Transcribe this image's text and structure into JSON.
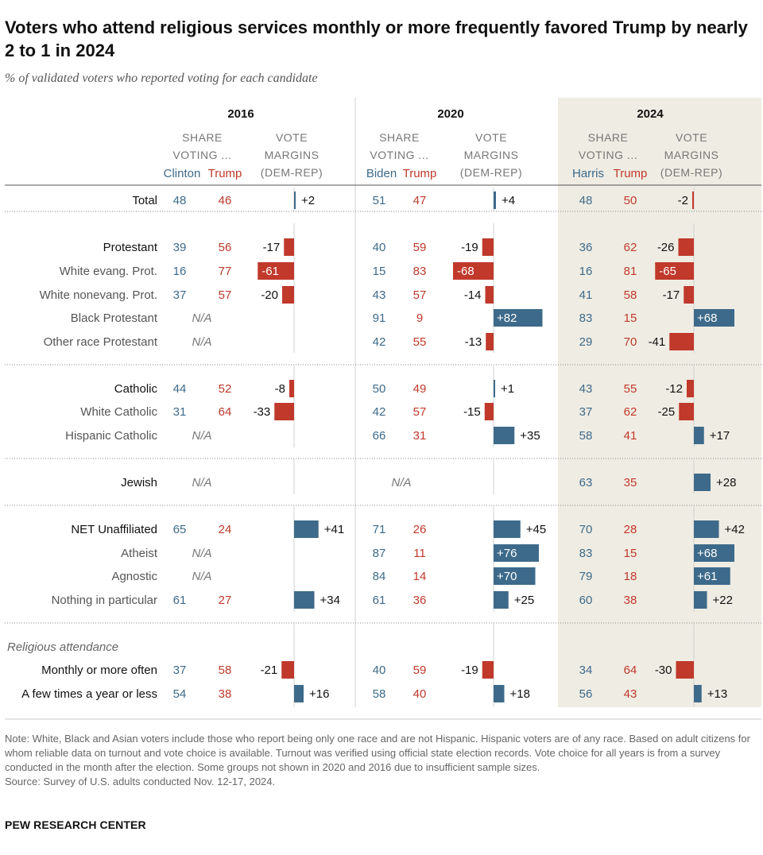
{
  "title": "Voters who attend religious services monthly or more frequently favored Trump by nearly 2 to 1 in 2024",
  "subtitle": "% of validated voters who reported voting for each candidate",
  "colors": {
    "dem": "#3d6a8a",
    "rep": "#c0392b",
    "shade": "#efece3",
    "grid": "#d0d0d0",
    "header": "#777777"
  },
  "headers": {
    "share": [
      "SHARE",
      "VOTING ..."
    ],
    "margin": [
      "VOTE",
      "MARGINS",
      "(DEM-REP)"
    ]
  },
  "chart_data": {
    "type": "table",
    "years": [
      {
        "year": "2016",
        "dem": "Clinton",
        "rep": "Trump"
      },
      {
        "year": "2020",
        "dem": "Biden",
        "rep": "Trump"
      },
      {
        "year": "2024",
        "dem": "Harris",
        "rep": "Trump"
      }
    ],
    "na_label": "N/A",
    "groups": [
      {
        "label": "",
        "rows": [
          {
            "label": "Total",
            "values": [
              [
                48,
                46,
                2
              ],
              [
                51,
                47,
                4
              ],
              [
                48,
                50,
                -2
              ]
            ]
          }
        ]
      },
      {
        "label": "",
        "rows": [
          {
            "label": "Protestant",
            "values": [
              [
                39,
                56,
                -17
              ],
              [
                40,
                59,
                -19
              ],
              [
                36,
                62,
                -26
              ]
            ]
          },
          {
            "label": "White evang. Prot.",
            "values": [
              [
                16,
                77,
                -61
              ],
              [
                15,
                83,
                -68
              ],
              [
                16,
                81,
                -65
              ]
            ]
          },
          {
            "label": "White nonevang. Prot.",
            "values": [
              [
                37,
                57,
                -20
              ],
              [
                43,
                57,
                -14
              ],
              [
                41,
                58,
                -17
              ]
            ]
          },
          {
            "label": "Black Protestant",
            "values": [
              null,
              [
                91,
                9,
                82
              ],
              [
                83,
                15,
                68
              ]
            ]
          },
          {
            "label": "Other race Protestant",
            "values": [
              null,
              [
                42,
                55,
                -13
              ],
              [
                29,
                70,
                -41
              ]
            ]
          }
        ]
      },
      {
        "label": "",
        "rows": [
          {
            "label": "Catholic",
            "values": [
              [
                44,
                52,
                -8
              ],
              [
                50,
                49,
                1
              ],
              [
                43,
                55,
                -12
              ]
            ]
          },
          {
            "label": "White Catholic",
            "values": [
              [
                31,
                64,
                -33
              ],
              [
                42,
                57,
                -15
              ],
              [
                37,
                62,
                -25
              ]
            ]
          },
          {
            "label": "Hispanic Catholic",
            "values": [
              null,
              [
                66,
                31,
                35
              ],
              [
                58,
                41,
                17
              ]
            ]
          }
        ]
      },
      {
        "label": "",
        "rows": [
          {
            "label": "Jewish",
            "values": [
              null,
              null,
              [
                63,
                35,
                28
              ]
            ]
          }
        ]
      },
      {
        "label": "",
        "rows": [
          {
            "label": "NET Unaffiliated",
            "values": [
              [
                65,
                24,
                41
              ],
              [
                71,
                26,
                45
              ],
              [
                70,
                28,
                42
              ]
            ]
          },
          {
            "label": "Atheist",
            "values": [
              null,
              [
                87,
                11,
                76
              ],
              [
                83,
                15,
                68
              ]
            ]
          },
          {
            "label": "Agnostic",
            "values": [
              null,
              [
                84,
                14,
                70
              ],
              [
                79,
                18,
                61
              ]
            ]
          },
          {
            "label": "Nothing in particular",
            "values": [
              [
                61,
                27,
                34
              ],
              [
                61,
                36,
                25
              ],
              [
                60,
                38,
                22
              ]
            ]
          }
        ]
      },
      {
        "label": "Religious attendance",
        "rows": [
          {
            "label": "Monthly or more often",
            "values": [
              [
                37,
                58,
                -21
              ],
              [
                40,
                59,
                -19
              ],
              [
                34,
                64,
                -30
              ]
            ]
          },
          {
            "label": "A few times a year or less",
            "values": [
              [
                54,
                38,
                16
              ],
              [
                58,
                40,
                18
              ],
              [
                56,
                43,
                13
              ]
            ]
          }
        ]
      }
    ]
  },
  "footnote": {
    "note": "Note: White, Black and Asian voters include those who report being only one race and are not Hispanic. Hispanic voters are of any race. Based on adult citizens for whom reliable data on turnout and vote choice is available. Turnout was verified using official state election records. Vote choice for all years is from a survey conducted in the month after the election. Some groups not shown in 2020 and 2016 due to insufficient sample sizes.",
    "source": "Source: Survey of U.S. adults conducted Nov. 12-17, 2024.",
    "org": "PEW RESEARCH CENTER"
  }
}
